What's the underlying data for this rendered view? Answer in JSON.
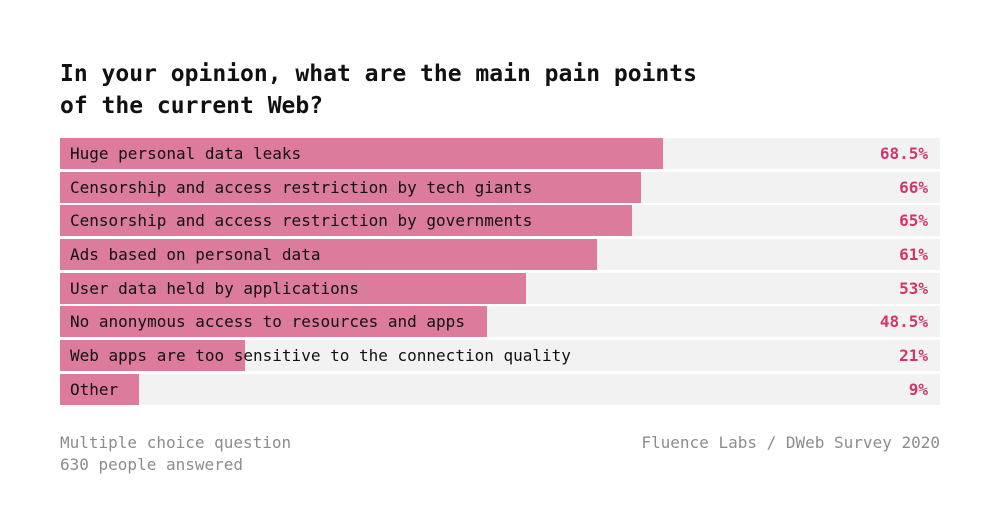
{
  "title_lines": [
    "In your opinion, what are the main pain points",
    "of the current Web?"
  ],
  "footer": {
    "note_line1": "Multiple choice question",
    "note_line2": "630 people answered",
    "source": "Fluence Labs / DWeb Survey 2020"
  },
  "colors": {
    "bar": "#dc7b9c",
    "track": "#f2f2f2",
    "value_text": "#d6336c",
    "footer_text": "#8c8c8c"
  },
  "chart_data": {
    "type": "bar",
    "orientation": "horizontal",
    "title": "In your opinion, what are the main pain points of the current Web?",
    "categories": [
      "Huge personal data leaks",
      "Censorship and access restriction by tech giants",
      "Censorship and access restriction by governments",
      "Ads based on personal data",
      "User data held by applications",
      "No anonymous access to resources and apps",
      "Web apps are too sensitive to the connection quality",
      "Other"
    ],
    "values": [
      68.5,
      66,
      65,
      61,
      53,
      48.5,
      21,
      9
    ],
    "value_labels": [
      "68.5%",
      "66%",
      "65%",
      "61%",
      "53%",
      "48.5%",
      "21%",
      "9%"
    ],
    "xlim": [
      0,
      100
    ],
    "grid": false
  }
}
